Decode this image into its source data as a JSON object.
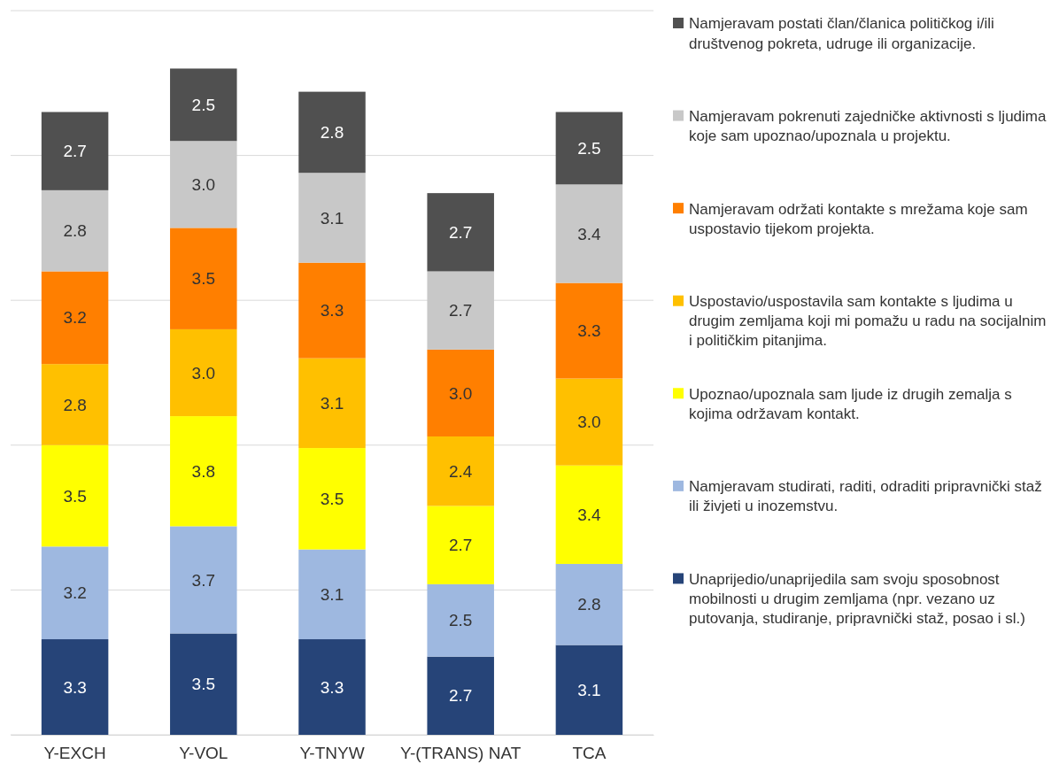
{
  "chart_data": {
    "type": "bar",
    "stacked": true,
    "categories": [
      "Y-EXCH",
      "Y-VOL",
      "Y-TNYW",
      "Y-(TRANS) NAT",
      "TCA"
    ],
    "ylim": [
      0,
      25
    ],
    "yticks": [
      {
        "value": 0,
        "label": null
      },
      {
        "value": 5,
        "label": null
      },
      {
        "value": 10,
        "label": null
      },
      {
        "value": 15,
        "label": null
      },
      {
        "value": 20,
        "label": null
      },
      {
        "value": 25,
        "label": null
      }
    ],
    "tick_labels": "x",
    "grid": "y",
    "legend": "right",
    "series": [
      {
        "name": "Unaprijedio/unaprijedila sam svoju sposobnost mobilnosti u drugim zemljama (npr. vezano uz putovanja, studiranje, pripravnički staž, posao i sl.)",
        "color": "#264478",
        "values": [
          3.3,
          3.5,
          3.3,
          2.7,
          3.1
        ],
        "value_labels": [
          "3.3",
          "3.5",
          "3.3",
          "2.7",
          "3.1"
        ]
      },
      {
        "name": "Namjeravam studirati, raditi, odraditi pripravnički staž ili živjeti u inozemstvu.",
        "color": "#9eb8e0",
        "values": [
          3.2,
          3.7,
          3.1,
          2.5,
          2.8
        ],
        "value_labels": [
          "3.2",
          "3.7",
          "3.1",
          "2.5",
          "2.8"
        ]
      },
      {
        "name": "Upoznao/upoznala sam ljude iz drugih zemalja s kojima održavam kontakt.",
        "color": "#ffff00",
        "values": [
          3.5,
          3.8,
          3.5,
          2.7,
          3.4
        ],
        "value_labels": [
          "3.5",
          "3.8",
          "3.5",
          "2.7",
          "3.4"
        ]
      },
      {
        "name": "Uspostavio/uspostavila sam kontakte s ljudima u drugim zemljama koji mi pomažu u radu na socijalnim i političkim pitanjima.",
        "color": "#ffc000",
        "values": [
          2.8,
          3.0,
          3.1,
          2.4,
          3.0
        ],
        "value_labels": [
          "2.8",
          "3.0",
          "3.1",
          "2.4",
          "3.0"
        ]
      },
      {
        "name": "Namjeravam održati kontakte s mrežama koje sam uspostavio tijekom projekta.",
        "color": "#ff7f00",
        "values": [
          3.2,
          3.5,
          3.3,
          3.0,
          3.3
        ],
        "value_labels": [
          "3.2",
          "3.5",
          "3.3",
          "3.0",
          "3.3"
        ]
      },
      {
        "name": "Namjeravam pokrenuti zajedničke aktivnosti s ljudima koje sam upoznao/upoznala u projektu.",
        "color": "#c8c8c8",
        "values": [
          2.8,
          3.0,
          3.1,
          2.7,
          3.4
        ],
        "value_labels": [
          "2.8",
          "3.0",
          "3.1",
          "2.7",
          "3.4"
        ]
      },
      {
        "name": "Namjeravam postati član/članica političkog i/ili društvenog pokreta, udruge ili organizacije.",
        "color": "#505050",
        "values": [
          2.7,
          2.5,
          2.8,
          2.7,
          2.5
        ],
        "value_labels": [
          "2.7",
          "2.5",
          "2.8",
          "2.7",
          "2.5"
        ]
      }
    ]
  }
}
